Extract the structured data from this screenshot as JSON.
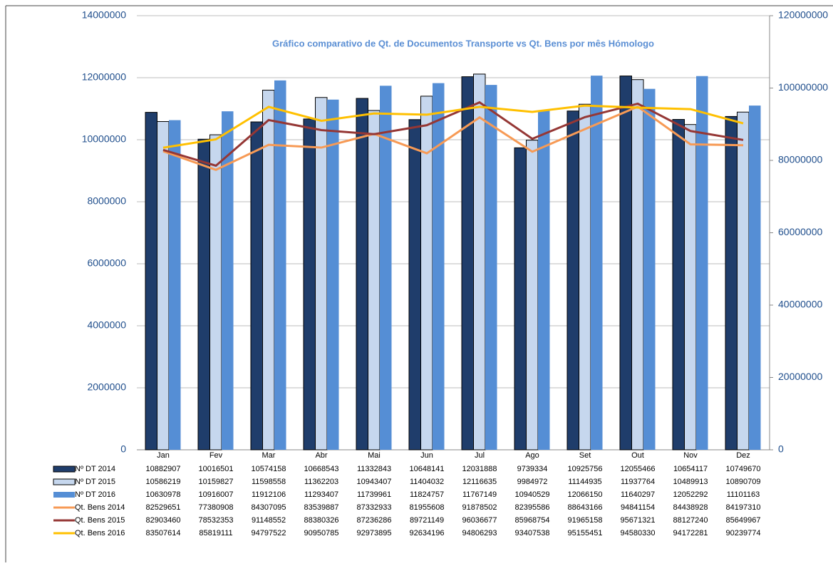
{
  "chart_data": {
    "type": "bar",
    "title": "Gráfico comparativo de Qt. de Documentos Transporte vs Qt. Bens por mês Hómologo",
    "categories": [
      "Jan",
      "Fev",
      "Mar",
      "Abr",
      "Mai",
      "Jun",
      "Jul",
      "Ago",
      "Set",
      "Out",
      "Nov",
      "Dez"
    ],
    "ylim": [
      0,
      14000000
    ],
    "yticks": [
      0,
      2000000,
      4000000,
      6000000,
      8000000,
      10000000,
      12000000,
      14000000
    ],
    "y2lim": [
      0,
      120000000
    ],
    "y2ticks": [
      0,
      20000000,
      40000000,
      60000000,
      80000000,
      100000000,
      120000000
    ],
    "grid": true,
    "series": [
      {
        "name": "Nº DT 2014",
        "type": "bar",
        "color": "#1f3d6b",
        "values": [
          10882907,
          10016501,
          10574158,
          10668543,
          11332843,
          10648141,
          12031888,
          9739334,
          10925756,
          12055466,
          10654117,
          10749670
        ]
      },
      {
        "name": "Nº DT 2015",
        "type": "bar",
        "color": "#c6d7ee",
        "values": [
          10586219,
          10159827,
          11598558,
          11362203,
          10943407,
          11404032,
          12116635,
          9984972,
          11144935,
          11937764,
          10489913,
          10890709
        ]
      },
      {
        "name": "Nº DT 2016",
        "type": "bar",
        "color": "#558ed5",
        "values": [
          10630978,
          10916007,
          11912106,
          11293407,
          11739961,
          11824757,
          11767149,
          10940529,
          12066150,
          11640297,
          12052292,
          11101163
        ]
      },
      {
        "name": "Qt. Bens 2014",
        "type": "line",
        "axis": "y2",
        "color": "#f79a55",
        "values": [
          82529651,
          77380908,
          84307095,
          83539887,
          87332933,
          81955608,
          91878502,
          82395586,
          88643166,
          94841154,
          84438928,
          84197310
        ]
      },
      {
        "name": "Qt. Bens 2015",
        "type": "line",
        "axis": "y2",
        "color": "#953735",
        "values": [
          82903460,
          78532353,
          91148552,
          88380326,
          87236286,
          89721149,
          96036677,
          85968754,
          91965158,
          95671321,
          88127240,
          85649967
        ]
      },
      {
        "name": "Qt. Bens 2016",
        "type": "line",
        "axis": "y2",
        "color": "#ffc000",
        "values": [
          83507614,
          85819111,
          94797522,
          90950785,
          92973895,
          92634196,
          94806293,
          93407538,
          95155451,
          94580330,
          94172281,
          90239774
        ]
      }
    ]
  }
}
